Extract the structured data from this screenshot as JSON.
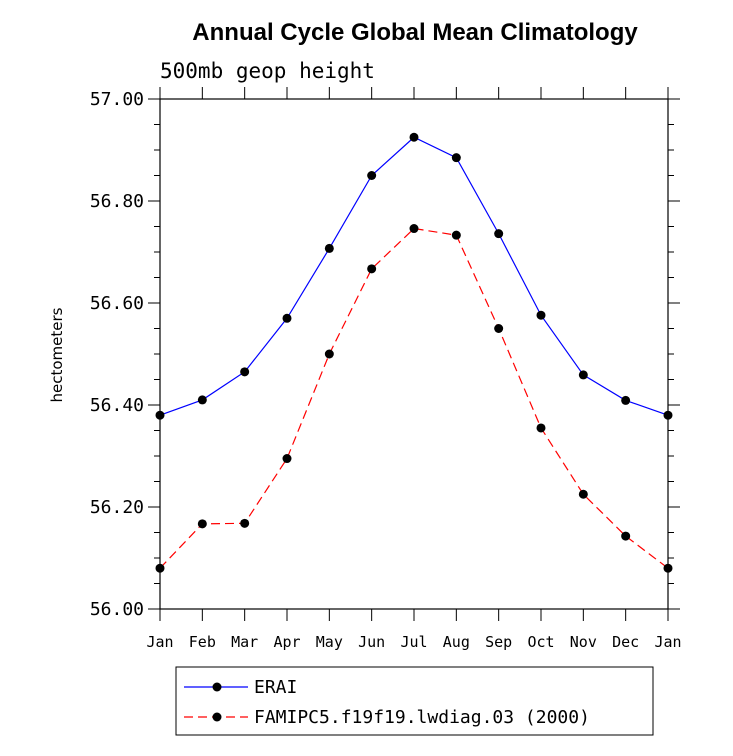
{
  "chart_data": {
    "type": "line",
    "title": "Annual Cycle Global Mean Climatology",
    "subtitle": "500mb geop height",
    "xlabel": "",
    "ylabel": "hectometers",
    "categories": [
      "Jan",
      "Feb",
      "Mar",
      "Apr",
      "May",
      "Jun",
      "Jul",
      "Aug",
      "Sep",
      "Oct",
      "Nov",
      "Dec",
      "Jan"
    ],
    "ylim": [
      56.0,
      57.0
    ],
    "yticks": [
      "56.00",
      "56.20",
      "56.40",
      "56.60",
      "56.80",
      "57.00"
    ],
    "series": [
      {
        "name": "ERAI",
        "color": "#0000ff",
        "dash": "solid",
        "values": [
          56.38,
          56.41,
          56.465,
          56.57,
          56.707,
          56.85,
          56.925,
          56.885,
          56.736,
          56.576,
          56.459,
          56.409,
          56.38
        ]
      },
      {
        "name": "FAMIPC5.f19f19.lwdiag.03 (2000)",
        "color": "#ff0000",
        "dash": "dashed",
        "values": [
          56.08,
          56.167,
          56.168,
          56.295,
          56.5,
          56.667,
          56.746,
          56.733,
          56.55,
          56.355,
          56.225,
          56.143,
          56.08
        ]
      }
    ],
    "legend_position": "bottom",
    "grid": false
  }
}
